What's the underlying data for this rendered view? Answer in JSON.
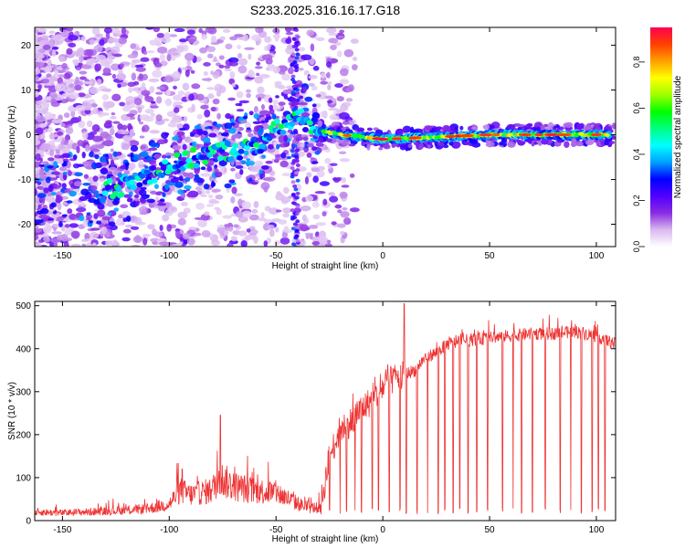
{
  "figure": {
    "title": "S233.2025.316.16.17.G18"
  },
  "chart_data": [
    {
      "type": "heatmap",
      "title": "S233.2025.316.16.17.G18",
      "xlabel": "Height of straight line (km)",
      "ylabel": "Frequency (Hz)",
      "xlim": [
        -163,
        109
      ],
      "ylim": [
        -25,
        24
      ],
      "xticks": [
        -150,
        -100,
        -50,
        0,
        50,
        100
      ],
      "yticks": [
        -20,
        -10,
        0,
        10,
        20
      ],
      "colorbar": {
        "label": "Normalized spectral amplitude",
        "range": [
          0.0,
          0.95
        ],
        "ticks": [
          "0.0",
          "0.2",
          "0.4",
          "0.6",
          "0.8"
        ],
        "tick_values": [
          0.0,
          0.2,
          0.4,
          0.6,
          0.8
        ],
        "colors": [
          "#ffffff",
          "#d9b8f0",
          "#8a2be2",
          "#5000ff",
          "#0000ff",
          "#00a0ff",
          "#00ffff",
          "#00ff80",
          "#00ff00",
          "#a0ff00",
          "#ffff00",
          "#ffa000",
          "#ff4000",
          "#ff0050"
        ]
      },
      "ridge": {
        "description_x": [
          -125,
          -100,
          -80,
          -60,
          -50,
          -40,
          -30,
          -20,
          0,
          50,
          105
        ],
        "frequency_hz": [
          -12,
          -7,
          -4,
          -3,
          1,
          4,
          1,
          0,
          -1,
          0,
          0
        ]
      }
    },
    {
      "type": "line",
      "xlabel": "Height of straight line (km)",
      "ylabel": "SNR (10 * v/v)",
      "xlim": [
        -163,
        109
      ],
      "ylim": [
        0,
        510
      ],
      "xticks": [
        -150,
        -100,
        -50,
        0,
        50,
        100
      ],
      "yticks": [
        0,
        100,
        200,
        300,
        400,
        500
      ],
      "series": [
        {
          "name": "SNR",
          "color": "#ee3333",
          "x": [
            -163,
            -150,
            -140,
            -130,
            -120,
            -110,
            -100,
            -95,
            -90,
            -80,
            -77,
            -70,
            -60,
            -50,
            -40,
            -35,
            -30,
            -28,
            -25,
            -20,
            -15,
            -10,
            -5,
            0,
            5,
            10,
            15,
            20,
            25,
            30,
            40,
            50,
            60,
            70,
            80,
            90,
            100,
            109
          ],
          "values": [
            20,
            18,
            20,
            22,
            24,
            28,
            38,
            70,
            60,
            70,
            100,
            80,
            70,
            65,
            40,
            30,
            30,
            60,
            150,
            210,
            230,
            260,
            280,
            310,
            330,
            340,
            350,
            380,
            390,
            410,
            420,
            425,
            430,
            435,
            435,
            440,
            430,
            410
          ]
        }
      ],
      "spikes": {
        "x": [
          -76,
          -94,
          10
        ],
        "values": [
          245,
          120,
          505
        ]
      },
      "dropouts_x": [
        -25,
        -20,
        -17,
        -13,
        -10,
        -5,
        -2,
        3,
        8,
        11,
        16,
        21,
        26,
        29,
        33,
        36,
        40,
        44,
        49,
        56,
        61,
        65,
        70,
        76,
        83,
        88,
        93,
        98,
        101,
        104
      ]
    }
  ]
}
